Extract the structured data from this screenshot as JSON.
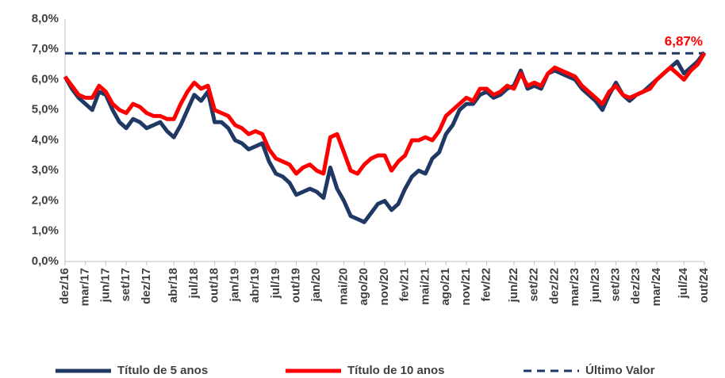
{
  "chart_data": {
    "type": "line",
    "categories": [
      "dez/16",
      null,
      null,
      "mar/17",
      null,
      null,
      "jun/17",
      null,
      null,
      "set/17",
      null,
      null,
      "dez/17",
      null,
      null,
      null,
      "abr/18",
      null,
      null,
      "jul/18",
      null,
      null,
      "out/18",
      null,
      null,
      "jan/19",
      null,
      null,
      "abr/19",
      null,
      null,
      "jul/19",
      null,
      null,
      "out/19",
      null,
      null,
      "jan/20",
      null,
      null,
      null,
      "mai/20",
      null,
      null,
      "ago/20",
      null,
      null,
      "nov/20",
      null,
      null,
      "fev/21",
      null,
      null,
      "mai/21",
      null,
      null,
      "ago/21",
      null,
      null,
      "nov/21",
      null,
      null,
      "fev/22",
      null,
      null,
      null,
      "jun/22",
      null,
      null,
      "set/22",
      null,
      null,
      "dez/22",
      null,
      null,
      "mar/23",
      null,
      null,
      "jun/23",
      null,
      null,
      "set/23",
      null,
      null,
      "dez/23",
      null,
      null,
      "mar/24",
      null,
      null,
      null,
      "jul/24",
      null,
      null,
      "out/24"
    ],
    "series": [
      {
        "name": "Título de 5 anos",
        "color": "#1f3864",
        "values": [
          6.1,
          5.7,
          5.4,
          5.2,
          5.0,
          5.6,
          5.5,
          5.0,
          4.6,
          4.4,
          4.7,
          4.6,
          4.4,
          4.5,
          4.6,
          4.3,
          4.1,
          4.5,
          5.0,
          5.5,
          5.3,
          5.6,
          4.6,
          4.6,
          4.4,
          4.0,
          3.9,
          3.7,
          3.8,
          3.9,
          3.3,
          2.9,
          2.8,
          2.6,
          2.2,
          2.3,
          2.4,
          2.3,
          2.1,
          3.1,
          2.4,
          2.0,
          1.5,
          1.4,
          1.3,
          1.6,
          1.9,
          2.0,
          1.7,
          1.9,
          2.4,
          2.8,
          3.0,
          2.9,
          3.4,
          3.6,
          4.2,
          4.5,
          5.0,
          5.2,
          5.2,
          5.5,
          5.6,
          5.4,
          5.5,
          5.7,
          5.8,
          6.3,
          5.7,
          5.8,
          5.7,
          6.2,
          6.3,
          6.2,
          6.1,
          6.0,
          5.7,
          5.5,
          5.3,
          5.0,
          5.5,
          5.9,
          5.5,
          5.3,
          5.5,
          5.6,
          5.8,
          6.0,
          6.2,
          6.4,
          6.6,
          6.2,
          6.4,
          6.6,
          6.9
        ]
      },
      {
        "name": "Título de 10 anos",
        "color": "#ff0000",
        "values": [
          6.1,
          5.8,
          5.5,
          5.4,
          5.4,
          5.8,
          5.6,
          5.2,
          5.0,
          4.9,
          5.2,
          5.1,
          4.9,
          4.8,
          4.8,
          4.7,
          4.7,
          5.2,
          5.6,
          5.9,
          5.7,
          5.8,
          5.0,
          4.9,
          4.8,
          4.5,
          4.4,
          4.2,
          4.3,
          4.2,
          3.7,
          3.4,
          3.3,
          3.2,
          2.9,
          3.1,
          3.2,
          3.0,
          2.9,
          4.1,
          4.2,
          3.6,
          3.0,
          2.9,
          3.2,
          3.4,
          3.5,
          3.5,
          3.0,
          3.3,
          3.5,
          4.0,
          4.0,
          4.1,
          4.0,
          4.3,
          4.8,
          5.0,
          5.2,
          5.4,
          5.3,
          5.7,
          5.7,
          5.5,
          5.6,
          5.8,
          5.7,
          6.2,
          5.8,
          5.9,
          5.8,
          6.2,
          6.4,
          6.3,
          6.2,
          6.1,
          5.8,
          5.6,
          5.4,
          5.2,
          5.6,
          5.8,
          5.5,
          5.4,
          5.5,
          5.6,
          5.7,
          6.0,
          6.2,
          6.4,
          6.2,
          6.0,
          6.3,
          6.5,
          6.87
        ]
      }
    ],
    "reference": {
      "name": "Último Valor",
      "value": 6.87,
      "label": "6,87%",
      "color": "#1f3864",
      "label_color": "#ff0000"
    },
    "ylim": [
      0,
      8
    ],
    "yticks": [
      {
        "value": 0,
        "label": "0,0%"
      },
      {
        "value": 1,
        "label": "1,0%"
      },
      {
        "value": 2,
        "label": "2,0%"
      },
      {
        "value": 3,
        "label": "3,0%"
      },
      {
        "value": 4,
        "label": "4,0%"
      },
      {
        "value": 5,
        "label": "5,0%"
      },
      {
        "value": 6,
        "label": "6,0%"
      },
      {
        "value": 7,
        "label": "7,0%"
      },
      {
        "value": 8,
        "label": "8,0%"
      }
    ],
    "grid": false,
    "legend": "bottom"
  }
}
